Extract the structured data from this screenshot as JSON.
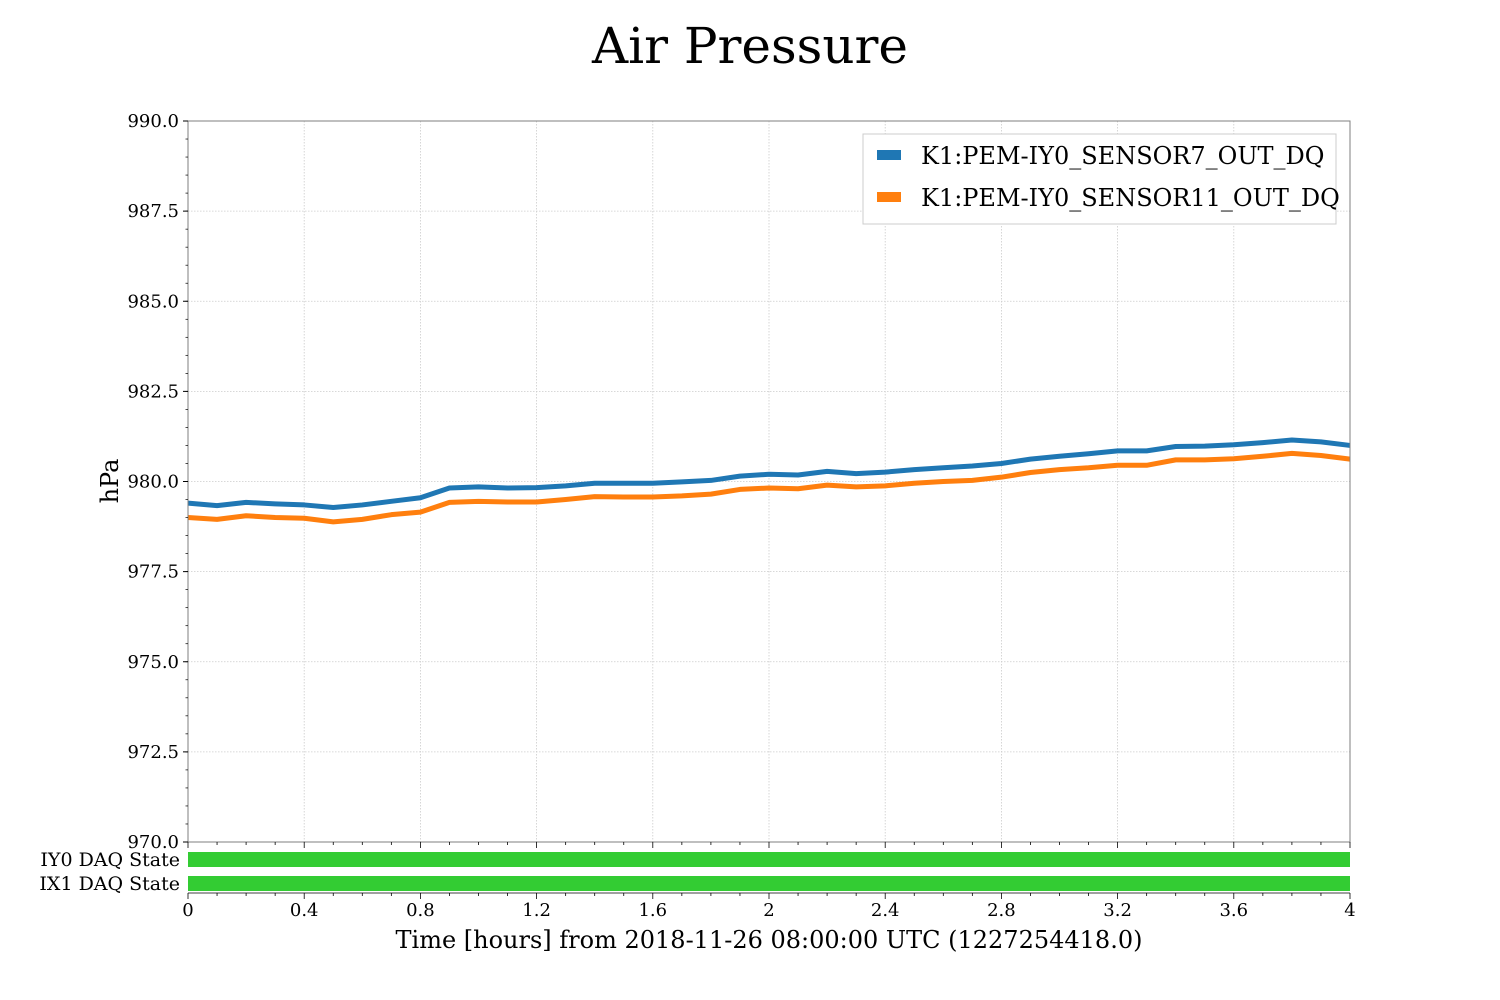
{
  "chart_data": {
    "type": "line",
    "title": "Air Pressure",
    "xlabel": "Time [hours] from 2018-11-26 08:00:00 UTC (1227254418.0)",
    "ylabel": "hPa",
    "xlim": [
      0,
      4
    ],
    "ylim": [
      970.0,
      990.0
    ],
    "x_ticks": [
      0,
      0.4,
      0.8,
      1.2,
      1.6,
      2,
      2.4,
      2.8,
      3.2,
      3.6,
      4
    ],
    "x_tick_labels": [
      "0",
      "0.4",
      "0.8",
      "1.2",
      "1.6",
      "2",
      "2.4",
      "2.8",
      "3.2",
      "3.6",
      "4"
    ],
    "y_ticks": [
      970.0,
      972.5,
      975.0,
      977.5,
      980.0,
      982.5,
      985.0,
      987.5,
      990.0
    ],
    "y_tick_labels": [
      "970.0",
      "972.5",
      "975.0",
      "977.5",
      "980.0",
      "982.5",
      "985.0",
      "987.5",
      "990.0"
    ],
    "grid": true,
    "legend_position": "top-right",
    "x": [
      0,
      0.1,
      0.2,
      0.3,
      0.4,
      0.5,
      0.6,
      0.7,
      0.8,
      0.9,
      1.0,
      1.1,
      1.2,
      1.3,
      1.4,
      1.5,
      1.6,
      1.7,
      1.8,
      1.9,
      2.0,
      2.1,
      2.2,
      2.3,
      2.4,
      2.5,
      2.6,
      2.7,
      2.8,
      2.9,
      3.0,
      3.1,
      3.2,
      3.3,
      3.4,
      3.5,
      3.6,
      3.7,
      3.8,
      3.9,
      4.0
    ],
    "series": [
      {
        "name": "K1:PEM-IY0_SENSOR7_OUT_DQ",
        "color": "#1f77b4",
        "values": [
          979.4,
          979.33,
          979.42,
          979.38,
          979.35,
          979.28,
          979.35,
          979.45,
          979.55,
          979.82,
          979.85,
          979.82,
          979.83,
          979.88,
          979.95,
          979.95,
          979.95,
          979.99,
          980.03,
          980.15,
          980.2,
          980.18,
          980.28,
          980.22,
          980.26,
          980.33,
          980.38,
          980.43,
          980.5,
          980.62,
          980.7,
          980.77,
          980.85,
          980.85,
          980.97,
          980.98,
          981.02,
          981.08,
          981.15,
          981.1,
          981.0
        ]
      },
      {
        "name": "K1:PEM-IY0_SENSOR11_OUT_DQ",
        "color": "#ff7f0e",
        "values": [
          979.0,
          978.95,
          979.05,
          979.0,
          978.98,
          978.88,
          978.95,
          979.08,
          979.15,
          979.42,
          979.45,
          979.43,
          979.43,
          979.5,
          979.58,
          979.57,
          979.57,
          979.6,
          979.65,
          979.78,
          979.82,
          979.8,
          979.9,
          979.85,
          979.88,
          979.95,
          980.0,
          980.03,
          980.12,
          980.25,
          980.33,
          980.38,
          980.45,
          980.45,
          980.6,
          980.6,
          980.63,
          980.7,
          980.78,
          980.72,
          980.62
        ]
      }
    ],
    "state_bars": [
      {
        "label": "IY0 DAQ State",
        "color": "#33cc33",
        "start": 0,
        "end": 4
      },
      {
        "label": "IX1 DAQ State",
        "color": "#33cc33",
        "start": 0,
        "end": 4
      }
    ]
  }
}
